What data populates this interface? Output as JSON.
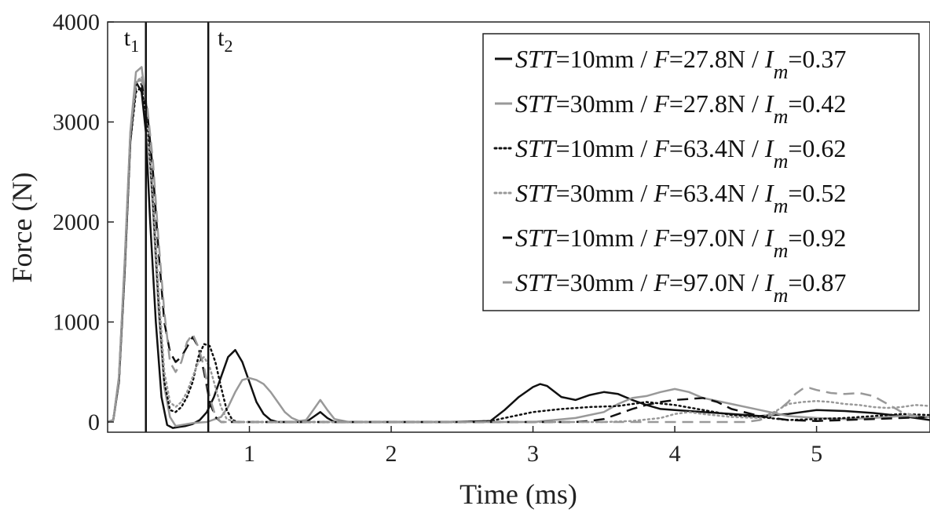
{
  "chart_data": {
    "type": "line",
    "xlabel": "Time (ms)",
    "ylabel": "Force (N)",
    "xlim": [
      0,
      5.8
    ],
    "ylim": [
      0,
      4000
    ],
    "xticks": [
      1,
      2,
      3,
      4,
      5
    ],
    "yticks": [
      0,
      1000,
      2000,
      3000,
      4000
    ],
    "grid": false,
    "legend_position": "top-right",
    "vlines": [
      {
        "x": 0.27,
        "label": "t",
        "sub": "1"
      },
      {
        "x": 0.71,
        "label": "t",
        "sub": "2"
      }
    ],
    "series": [
      {
        "name": "STT=10mm / F=27.8N / I_m=0.37",
        "legend": {
          "stt": "10mm",
          "f": "27.8N",
          "im": "0.37"
        },
        "color": "#111111",
        "dash": "solid",
        "x": [
          0,
          0.04,
          0.08,
          0.12,
          0.16,
          0.2,
          0.24,
          0.27,
          0.3,
          0.34,
          0.38,
          0.42,
          0.46,
          0.5,
          0.55,
          0.6,
          0.65,
          0.7,
          0.75,
          0.8,
          0.85,
          0.9,
          0.95,
          1.0,
          1.05,
          1.1,
          1.15,
          1.2,
          1.3,
          1.4,
          1.45,
          1.5,
          1.55,
          1.6,
          1.8,
          2.0,
          2.4,
          2.7,
          2.8,
          2.9,
          3.0,
          3.05,
          3.1,
          3.2,
          3.3,
          3.4,
          3.5,
          3.6,
          3.7,
          3.8,
          3.9,
          4.0,
          4.2,
          4.4,
          4.6,
          4.8,
          5.0,
          5.2,
          5.4,
          5.6,
          5.8
        ],
        "y": [
          0,
          20,
          400,
          1500,
          2800,
          3400,
          3300,
          2900,
          2000,
          1000,
          250,
          -30,
          -60,
          -50,
          -40,
          -20,
          20,
          100,
          250,
          450,
          650,
          720,
          600,
          400,
          200,
          80,
          20,
          0,
          0,
          0,
          50,
          100,
          40,
          0,
          0,
          0,
          0,
          10,
          120,
          250,
          350,
          380,
          360,
          250,
          220,
          270,
          300,
          280,
          220,
          170,
          130,
          120,
          100,
          80,
          60,
          80,
          120,
          110,
          90,
          60,
          20
        ]
      },
      {
        "name": "STT=30mm / F=27.8N / I_m=0.42",
        "legend": {
          "stt": "30mm",
          "f": "27.8N",
          "im": "0.42"
        },
        "color": "#999999",
        "dash": "solid",
        "x": [
          0,
          0.04,
          0.08,
          0.12,
          0.16,
          0.2,
          0.24,
          0.28,
          0.32,
          0.36,
          0.4,
          0.44,
          0.48,
          0.52,
          0.6,
          0.7,
          0.8,
          0.85,
          0.9,
          0.95,
          1.0,
          1.05,
          1.1,
          1.15,
          1.2,
          1.25,
          1.3,
          1.35,
          1.4,
          1.45,
          1.5,
          1.55,
          1.6,
          1.7,
          2.0,
          2.5,
          3.0,
          3.3,
          3.5,
          3.6,
          3.7,
          3.8,
          3.9,
          4.0,
          4.1,
          4.2,
          4.4,
          4.6,
          4.8,
          5.0,
          5.2,
          5.4,
          5.6,
          5.8
        ],
        "y": [
          0,
          20,
          450,
          1600,
          2900,
          3500,
          3550,
          3100,
          2100,
          1100,
          350,
          50,
          -40,
          -30,
          -10,
          0,
          50,
          150,
          300,
          420,
          440,
          420,
          380,
          300,
          200,
          100,
          40,
          10,
          20,
          120,
          220,
          120,
          30,
          0,
          0,
          0,
          0,
          40,
          100,
          180,
          240,
          260,
          300,
          330,
          300,
          240,
          180,
          120,
          60,
          40,
          30,
          40,
          60,
          50
        ]
      },
      {
        "name": "STT=10mm / F=63.4N / I_m=0.62",
        "legend": {
          "stt": "10mm",
          "f": "63.4N",
          "im": "0.62"
        },
        "color": "#111111",
        "dash": "dotted",
        "x": [
          0,
          0.04,
          0.08,
          0.12,
          0.16,
          0.2,
          0.24,
          0.28,
          0.32,
          0.36,
          0.4,
          0.44,
          0.48,
          0.52,
          0.56,
          0.6,
          0.64,
          0.68,
          0.72,
          0.76,
          0.8,
          0.84,
          0.88,
          0.92,
          1.0,
          1.2,
          1.5,
          2.0,
          2.5,
          2.7,
          2.8,
          3.0,
          3.2,
          3.4,
          3.6,
          3.8,
          4.0,
          4.2,
          4.4,
          4.6,
          4.8,
          5.0,
          5.2,
          5.4,
          5.6,
          5.8
        ],
        "y": [
          0,
          20,
          400,
          1500,
          2800,
          3300,
          3350,
          3000,
          2200,
          1200,
          400,
          120,
          100,
          150,
          250,
          400,
          650,
          780,
          760,
          600,
          350,
          120,
          20,
          0,
          0,
          0,
          0,
          0,
          0,
          10,
          40,
          100,
          130,
          150,
          160,
          200,
          170,
          120,
          70,
          50,
          20,
          30,
          40,
          60,
          80,
          70
        ]
      },
      {
        "name": "STT=30mm / F=63.4N / I_m=0.52",
        "legend": {
          "stt": "30mm",
          "f": "63.4N",
          "im": "0.52"
        },
        "color": "#999999",
        "dash": "dotted",
        "x": [
          0,
          0.04,
          0.08,
          0.12,
          0.16,
          0.2,
          0.24,
          0.28,
          0.32,
          0.36,
          0.4,
          0.44,
          0.48,
          0.52,
          0.56,
          0.6,
          0.64,
          0.68,
          0.72,
          0.76,
          0.8,
          0.84,
          0.9,
          1.0,
          1.5,
          2.0,
          2.5,
          3.0,
          3.5,
          3.7,
          3.9,
          4.0,
          4.1,
          4.2,
          4.4,
          4.6,
          4.7,
          4.8,
          4.9,
          5.0,
          5.1,
          5.2,
          5.3,
          5.4,
          5.5,
          5.6,
          5.7,
          5.8
        ],
        "y": [
          0,
          20,
          420,
          1550,
          2850,
          3400,
          3450,
          3100,
          2300,
          1300,
          500,
          200,
          150,
          200,
          300,
          450,
          600,
          650,
          550,
          350,
          150,
          30,
          0,
          0,
          0,
          0,
          0,
          0,
          0,
          10,
          40,
          80,
          100,
          80,
          50,
          40,
          100,
          180,
          200,
          210,
          200,
          180,
          170,
          150,
          140,
          150,
          170,
          160
        ]
      },
      {
        "name": "STT=10mm / F=97.0N / I_m=0.92",
        "legend": {
          "stt": "10mm",
          "f": "97.0N",
          "im": "0.92"
        },
        "color": "#111111",
        "dash": "dashed",
        "x": [
          0,
          0.04,
          0.08,
          0.12,
          0.16,
          0.2,
          0.24,
          0.28,
          0.32,
          0.36,
          0.4,
          0.44,
          0.48,
          0.52,
          0.56,
          0.6,
          0.64,
          0.68,
          0.72,
          0.76,
          0.8,
          0.85,
          0.9,
          1.0,
          1.5,
          2.0,
          2.5,
          3.0,
          3.3,
          3.4,
          3.5,
          3.6,
          3.7,
          3.8,
          3.9,
          4.0,
          4.2,
          4.3,
          4.4,
          4.6,
          4.8,
          5.0,
          5.2,
          5.4,
          5.6,
          5.8
        ],
        "y": [
          0,
          20,
          420,
          1550,
          2850,
          3350,
          3380,
          3100,
          2500,
          1700,
          1000,
          700,
          600,
          650,
          750,
          850,
          750,
          500,
          200,
          50,
          0,
          0,
          0,
          0,
          0,
          0,
          0,
          0,
          0,
          10,
          30,
          80,
          130,
          170,
          200,
          220,
          240,
          200,
          130,
          60,
          20,
          10,
          20,
          30,
          40,
          50
        ]
      },
      {
        "name": "STT=30mm / F=97.0N / I_m=0.87",
        "legend": {
          "stt": "30mm",
          "f": "97.0N",
          "im": "0.87"
        },
        "color": "#999999",
        "dash": "dashed",
        "x": [
          0,
          0.04,
          0.08,
          0.12,
          0.16,
          0.2,
          0.24,
          0.28,
          0.32,
          0.36,
          0.4,
          0.44,
          0.48,
          0.52,
          0.56,
          0.6,
          0.64,
          0.68,
          0.72,
          0.76,
          0.8,
          0.85,
          0.9,
          1.0,
          1.5,
          2.0,
          2.5,
          3.0,
          3.5,
          4.0,
          4.3,
          4.5,
          4.6,
          4.7,
          4.8,
          4.85,
          4.9,
          4.95,
          5.0,
          5.1,
          5.2,
          5.3,
          5.4,
          5.5,
          5.6,
          5.7,
          5.8
        ],
        "y": [
          0,
          20,
          430,
          1580,
          2880,
          3400,
          3420,
          3150,
          2600,
          1800,
          1100,
          600,
          500,
          600,
          800,
          880,
          750,
          550,
          250,
          60,
          0,
          0,
          0,
          0,
          0,
          0,
          0,
          0,
          0,
          0,
          0,
          0,
          20,
          80,
          200,
          280,
          330,
          340,
          320,
          290,
          280,
          290,
          260,
          180,
          100,
          60,
          50
        ]
      }
    ]
  }
}
